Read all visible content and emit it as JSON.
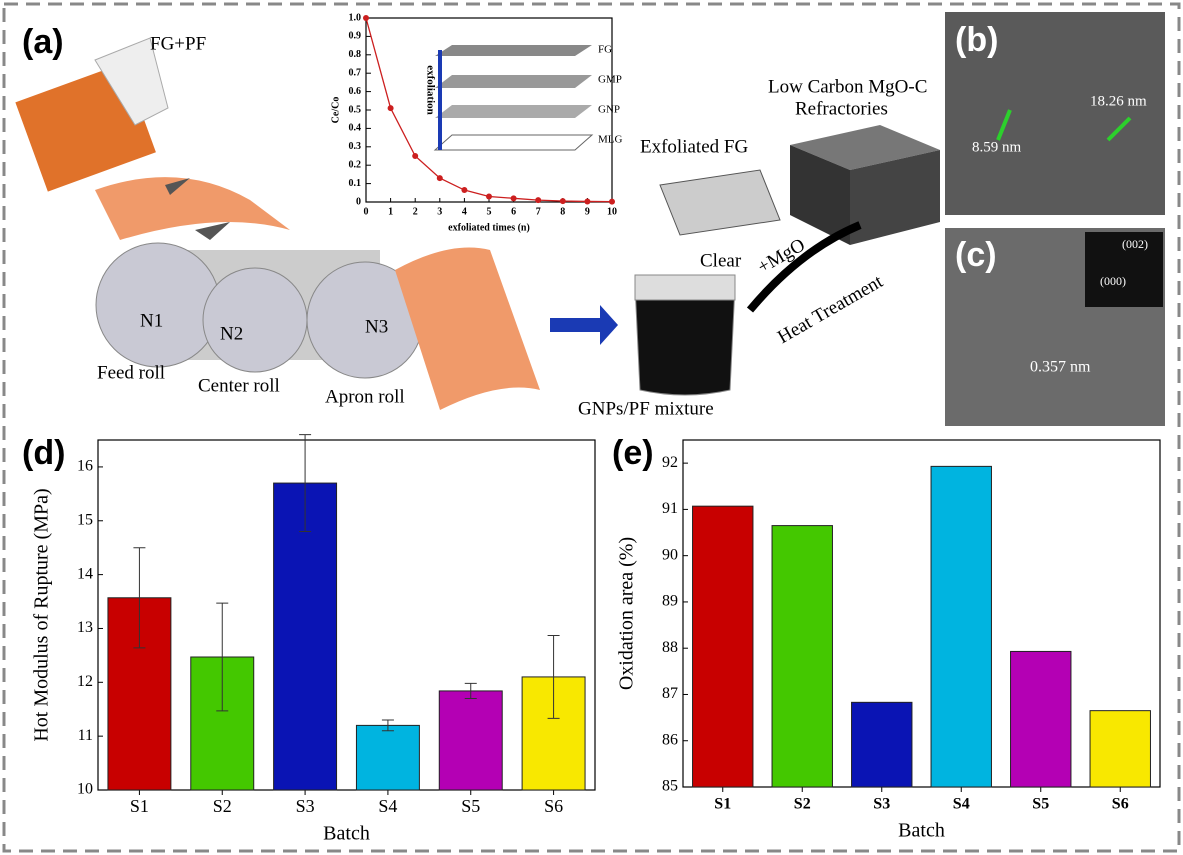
{
  "panels": {
    "a": "(a)",
    "b": "(b)",
    "c": "(c)",
    "d": "(d)",
    "e": "(e)"
  },
  "diagram": {
    "feed": "FG+PF",
    "n1": "N1",
    "n2": "N2",
    "n3": "N3",
    "feed_roll": "Feed roll",
    "center_roll": "Center roll",
    "apron_roll": "Apron roll",
    "exfoliated": "Exfoliated FG",
    "clear": "Clear",
    "mixture": "GNPs/PF mixture",
    "mgo": "+MgO",
    "heat": "Heat Treatment",
    "product": [
      "Low Carbon MgO-C",
      "Refractories"
    ]
  },
  "inset_labels": {
    "fg": "FG",
    "gmp": "GMP",
    "gnp": "GNP",
    "mlg": "MLG",
    "arrow": "exfoliation"
  },
  "micrographs": {
    "b1": "8.59 nm",
    "b2": "18.26 nm",
    "c1": "(002)",
    "c2": "(000)",
    "c3": "0.357 nm"
  },
  "chart_data": [
    {
      "type": "line",
      "x_label": "exfoliated times (n)",
      "y_label": "Ce/Co",
      "color": "#cc1f1f",
      "x": [
        0,
        1,
        2,
        3,
        4,
        5,
        6,
        7,
        8,
        9,
        10
      ],
      "values": [
        1.0,
        0.51,
        0.25,
        0.13,
        0.065,
        0.03,
        0.02,
        0.01,
        0.005,
        0.003,
        0.002
      ],
      "xlim": [
        0,
        10
      ],
      "xticks": [
        0,
        1,
        2,
        3,
        4,
        5,
        6,
        7,
        8,
        9,
        10
      ],
      "ylim": [
        0,
        1
      ],
      "yticks": [
        0,
        0.1,
        0.2,
        0.3,
        0.4,
        0.5,
        0.6,
        0.7,
        0.8,
        0.9,
        {
          "value": 1,
          "label": "1.0"
        }
      ]
    },
    {
      "type": "bar",
      "x_label": "Batch",
      "y_label": "Hot Modulus of Rupture (MPa)",
      "categories": [
        "S1",
        "S2",
        "S3",
        "S4",
        "S5",
        "S6"
      ],
      "values": [
        13.57,
        12.47,
        15.7,
        11.2,
        11.84,
        12.1
      ],
      "errors": [
        0.93,
        1.0,
        0.9,
        0.1,
        0.14,
        0.77
      ],
      "colors": [
        "#c80000",
        "#44c800",
        "#0a14b4",
        "#00b4e0",
        "#b400b4",
        "#f8e800"
      ],
      "ylim": [
        10,
        16.5
      ],
      "yticks": [
        10,
        11,
        12,
        13,
        14,
        15,
        16
      ]
    },
    {
      "type": "bar",
      "x_label": "Batch",
      "y_label": "Oxidation area (%)",
      "categories": [
        "S1",
        "S2",
        "S3",
        "S4",
        "S5",
        "S6"
      ],
      "values": [
        91.07,
        90.65,
        86.83,
        91.93,
        87.93,
        86.65
      ],
      "colors": [
        "#c80000",
        "#44c800",
        "#0a14b4",
        "#00b4e0",
        "#b400b4",
        "#f8e800"
      ],
      "ylim": [
        85,
        92.5
      ],
      "yticks": [
        85,
        86,
        87,
        88,
        89,
        90,
        91,
        92
      ]
    }
  ]
}
